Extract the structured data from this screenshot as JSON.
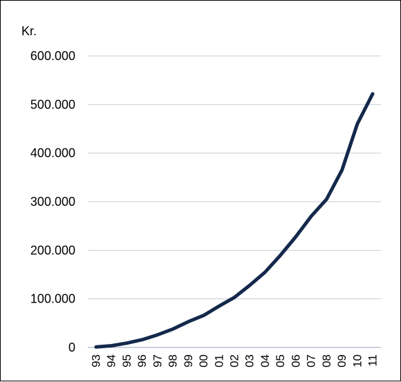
{
  "chart_data": {
    "type": "line",
    "unit_label": "Kr.",
    "categories": [
      "93",
      "94",
      "95",
      "96",
      "97",
      "98",
      "99",
      "00",
      "01",
      "02",
      "03",
      "04",
      "05",
      "06",
      "07",
      "08",
      "09",
      "10",
      "11"
    ],
    "series": [
      {
        "values": [
          1000,
          3500,
          9000,
          16000,
          26000,
          38000,
          53000,
          66000,
          85000,
          103000,
          128000,
          155000,
          190000,
          228000,
          270000,
          305000,
          365000,
          460000,
          522000
        ],
        "color": "#13294b"
      }
    ],
    "yticks": [
      "0",
      "100.000",
      "200.000",
      "300.000",
      "400.000",
      "500.000",
      "600.000"
    ],
    "ylim": [
      0,
      600000
    ],
    "grid": true
  }
}
